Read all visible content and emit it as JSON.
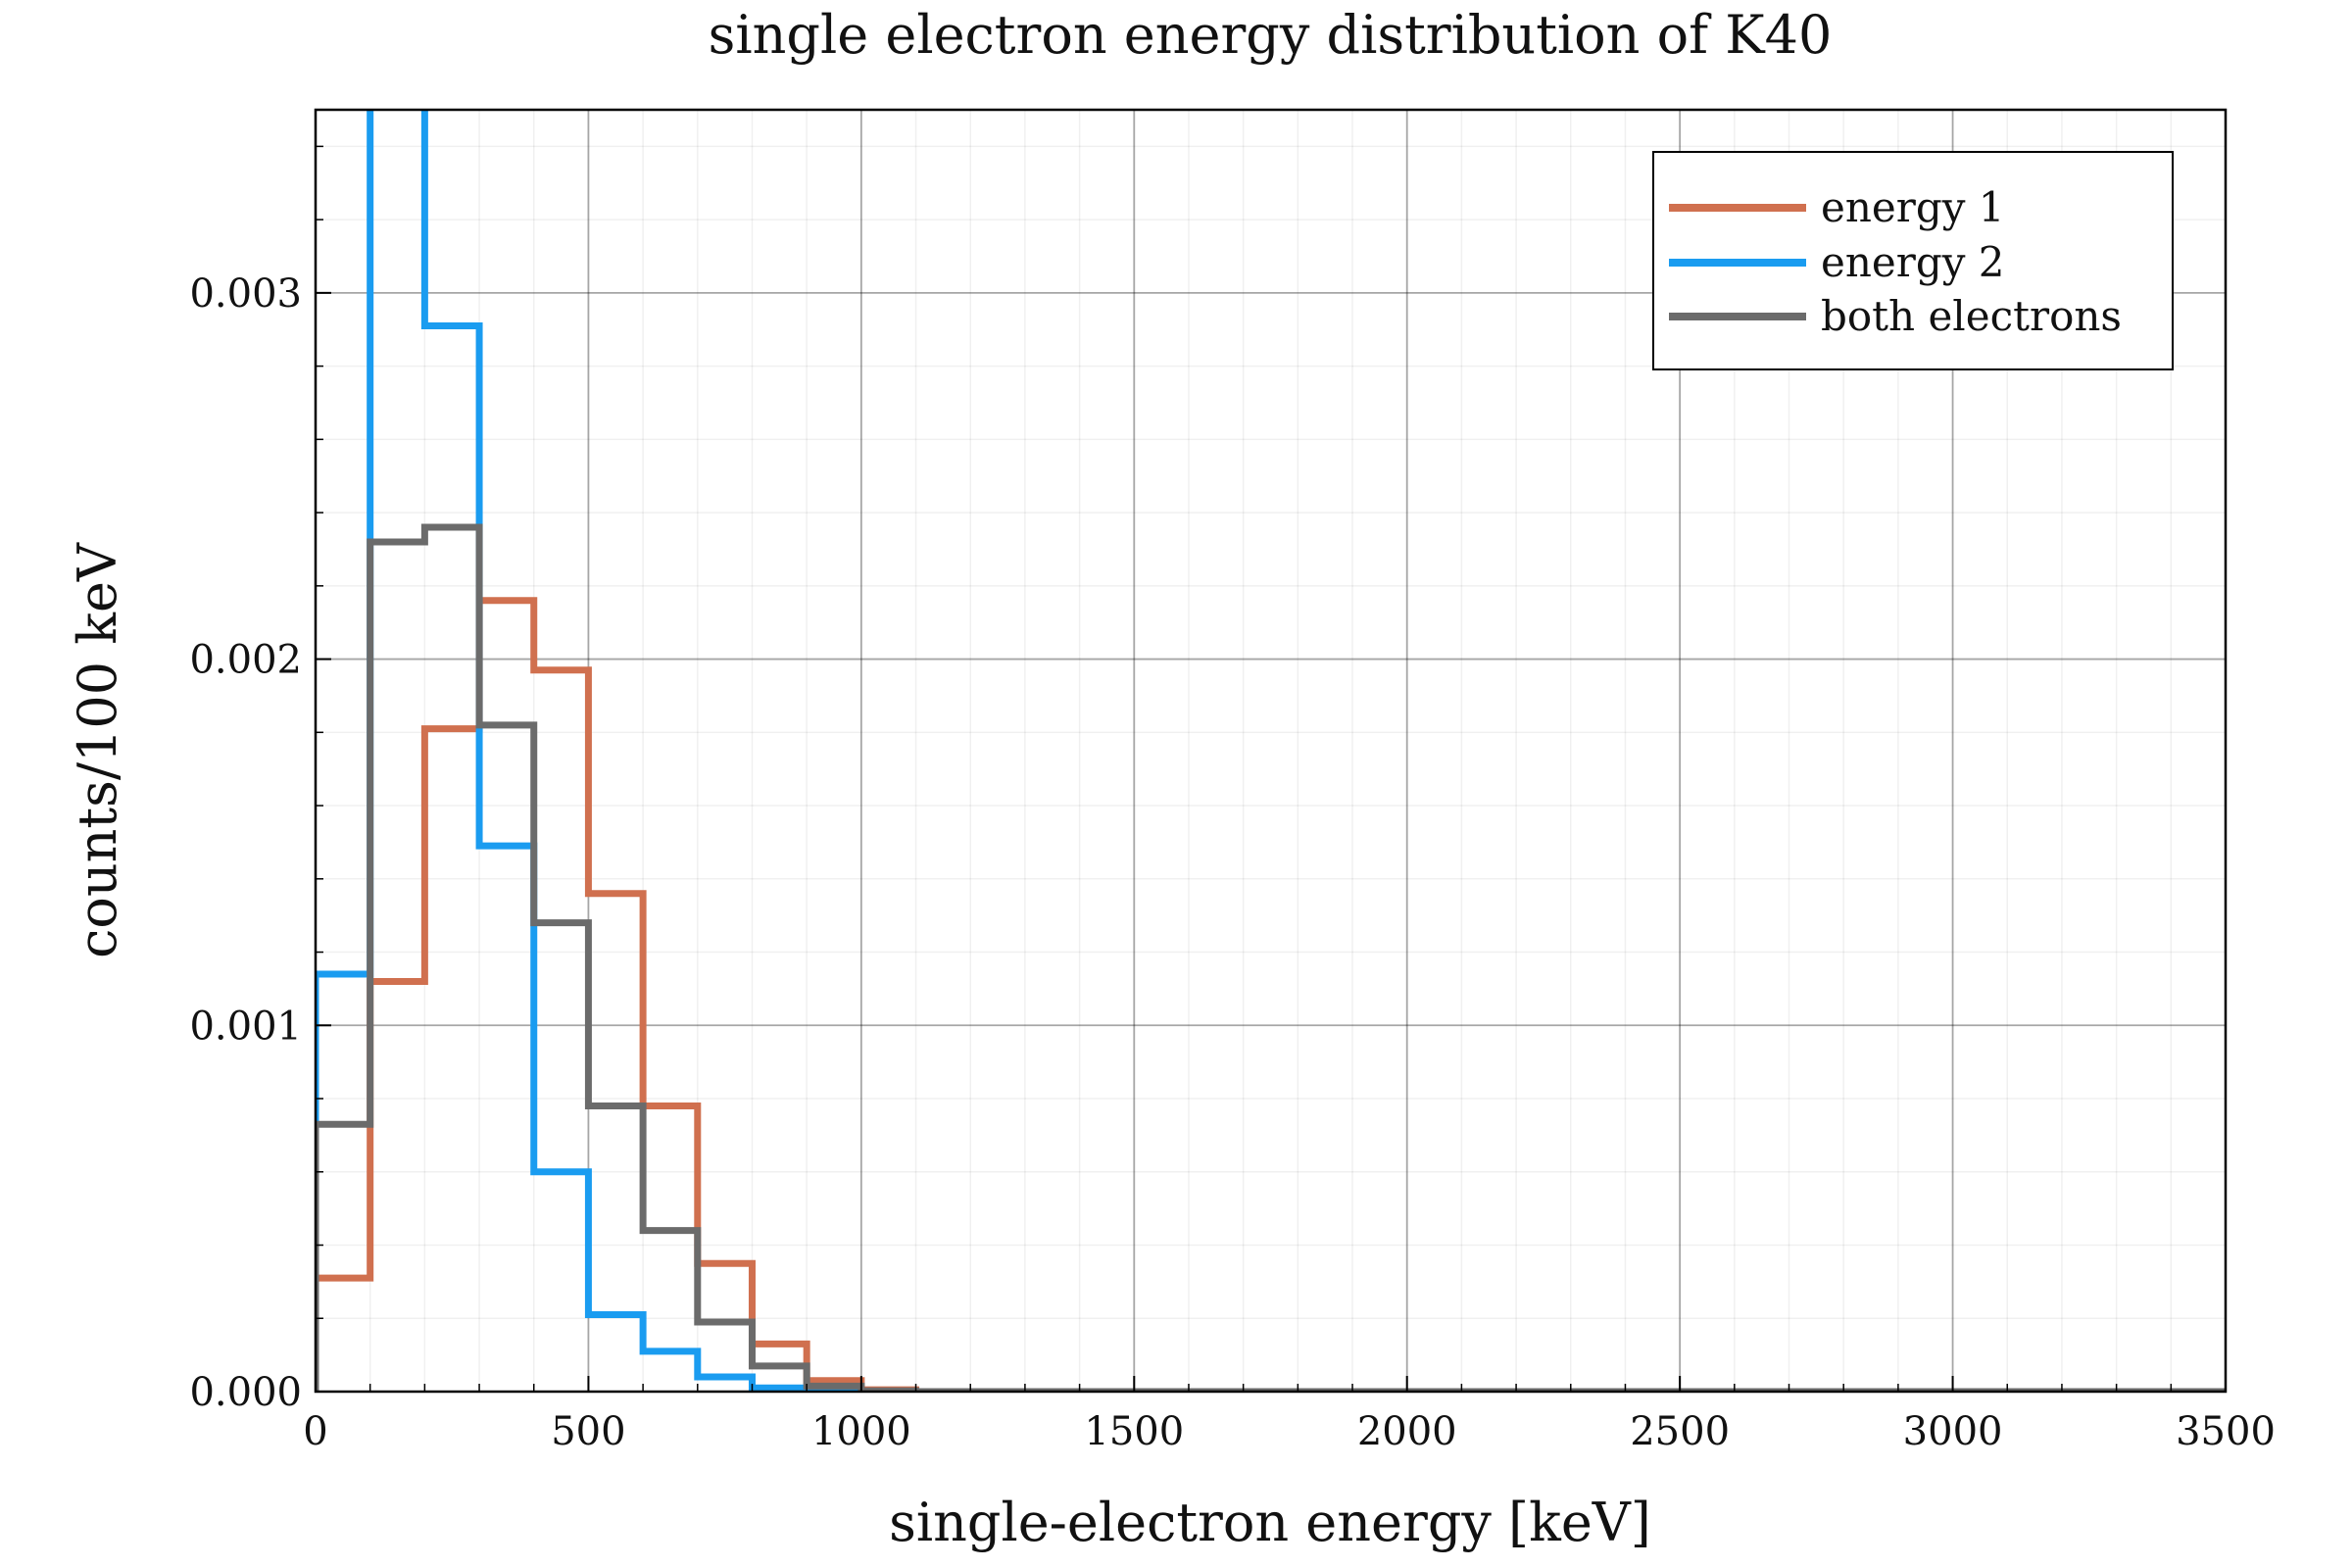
{
  "chart_data": {
    "type": "line",
    "title": "single electron energy distribution of K40",
    "xlabel": "single-electron energy [keV]",
    "ylabel": "counts/100 keV",
    "xlim": [
      0,
      3500
    ],
    "ylim": [
      0,
      0.0035
    ],
    "xticks": [
      0,
      500,
      1000,
      1500,
      2000,
      2500,
      3000,
      3500
    ],
    "xtick_labels": [
      "0",
      "500",
      "1000",
      "1500",
      "2000",
      "2500",
      "3000",
      "3500"
    ],
    "yticks": [
      0,
      0.001,
      0.002,
      0.003
    ],
    "ytick_labels": [
      "0.000",
      "0.001",
      "0.002",
      "0.003"
    ],
    "grid": true,
    "legend_position": "top-right",
    "bin_edges": [
      0,
      100,
      200,
      300,
      400,
      500,
      600,
      700,
      800,
      900,
      1000,
      1100,
      3500
    ],
    "series": [
      {
        "name": "energy 1",
        "color": "#d0704f",
        "values": [
          0.00031,
          0.00112,
          0.00181,
          0.00216,
          0.00197,
          0.00136,
          0.00078,
          0.00035,
          0.00013,
          3e-05,
          5e-06,
          0
        ]
      },
      {
        "name": "energy 2",
        "color": "#1a9cf0",
        "values": [
          0.00114,
          0.0036,
          0.00291,
          0.00149,
          0.0006,
          0.00021,
          0.00011,
          4e-05,
          1e-05,
          0,
          0,
          0
        ]
      },
      {
        "name": "both electrons",
        "color": "#6b6b6b",
        "values": [
          0.00073,
          0.00232,
          0.00236,
          0.00182,
          0.00128,
          0.00078,
          0.00044,
          0.00019,
          7e-05,
          1.5e-05,
          2e-06,
          0
        ]
      }
    ]
  }
}
